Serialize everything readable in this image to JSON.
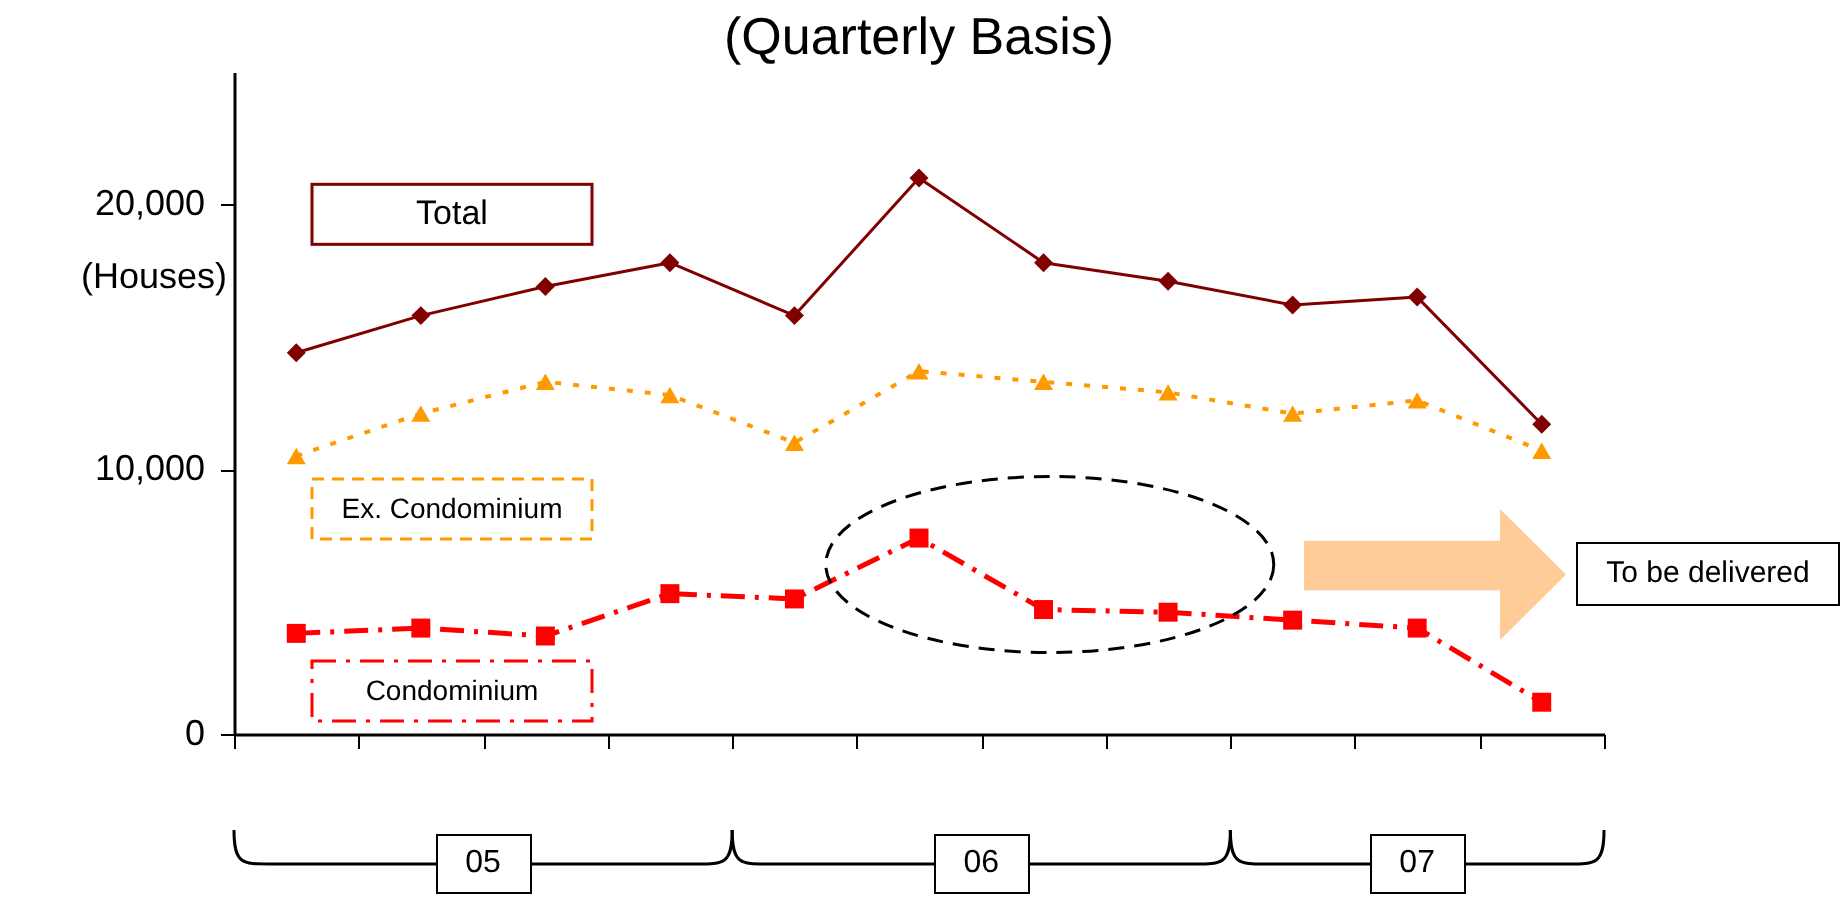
{
  "chart_data": {
    "type": "line",
    "title": "(Quarterly Basis)",
    "ylabel": "(Houses)",
    "categories": [
      null,
      null,
      null,
      null,
      null,
      null,
      null,
      null,
      null,
      null,
      null
    ],
    "series": [
      {
        "name": "Total",
        "color": "#800000",
        "marker": "diamond",
        "line_style": "solid",
        "values": [
          14400,
          15800,
          16900,
          17800,
          15800,
          21000,
          17800,
          17100,
          16200,
          16500,
          11700
        ]
      },
      {
        "name": "Ex. Condominium",
        "color": "#ff9900",
        "marker": "triangle",
        "line_style": "dotted",
        "values": [
          10500,
          12100,
          13300,
          12800,
          11000,
          13700,
          13300,
          12900,
          12100,
          12600,
          10700
        ]
      },
      {
        "name": "Condominium",
        "color": "#ff0000",
        "marker": "square",
        "line_style": "dashdot",
        "values": [
          3800,
          4000,
          3700,
          5300,
          5100,
          7400,
          4700,
          4600,
          4300,
          4000,
          1200
        ]
      }
    ],
    "ylim": [
      0,
      25000
    ],
    "yticks": [
      {
        "value": 0,
        "label": "0"
      },
      {
        "value": 10000,
        "label": "10,000"
      },
      {
        "value": 20000,
        "label": "20,000"
      }
    ],
    "tick_labels": "y",
    "grid": false,
    "annotations": [
      "05",
      "06",
      "07",
      "To be delivered"
    ]
  }
}
